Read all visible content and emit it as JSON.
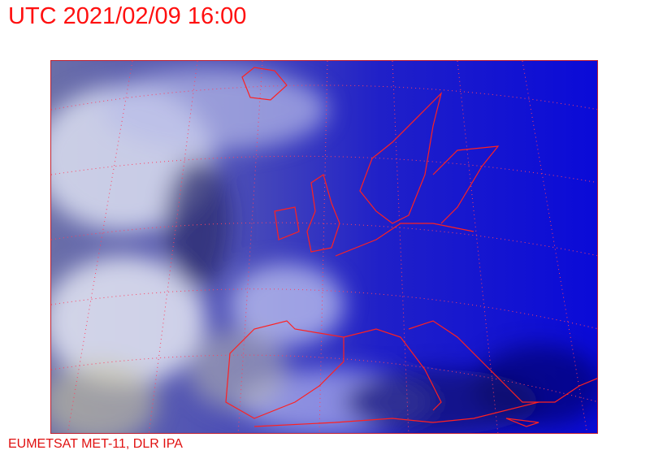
{
  "header": {
    "title": "UTC 2021/02/09 16:00"
  },
  "footer": {
    "credit": "EUMETSAT MET-11, DLR IPA"
  },
  "map": {
    "type": "satellite-image",
    "coastline_color": "#ff2020",
    "graticule_color": "#ff4060",
    "ocean_color": "#1a1ad0",
    "cloud_color": "#d8dcf0"
  }
}
